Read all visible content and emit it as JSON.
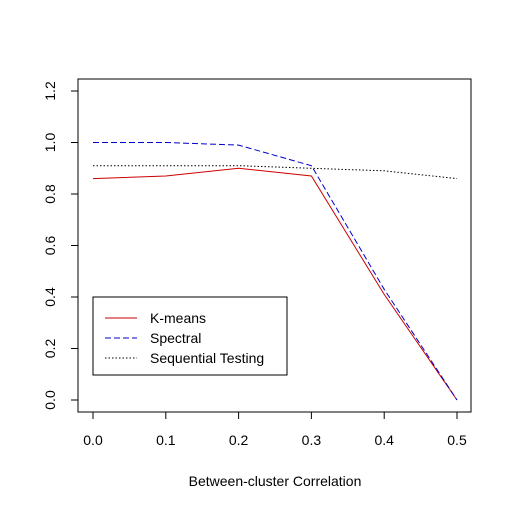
{
  "chart_data": {
    "type": "line",
    "title": "",
    "xlabel": "Between-cluster Correlation",
    "ylabel": "",
    "xlim": [
      -0.05,
      0.52
    ],
    "ylim": [
      -0.05,
      1.25
    ],
    "x_ticks": [
      0.0,
      0.1,
      0.2,
      0.3,
      0.4,
      0.5
    ],
    "x_tick_labels": [
      "0.0",
      "0.1",
      "0.2",
      "0.3",
      "0.4",
      "0.5"
    ],
    "y_ticks": [
      0.0,
      0.2,
      0.4,
      0.6,
      0.8,
      1.0,
      1.2
    ],
    "y_tick_labels": [
      "0.0",
      "0.2",
      "0.4",
      "0.6",
      "0.8",
      "1.0",
      "1.2"
    ],
    "grid": false,
    "legend_position": "bottom-left",
    "x": [
      0.0,
      0.1,
      0.2,
      0.3,
      0.4,
      0.5
    ],
    "series": [
      {
        "name": "K-means",
        "values": [
          0.86,
          0.87,
          0.9,
          0.87,
          0.41,
          0.0
        ],
        "color": "#cc0000",
        "dash": "solid"
      },
      {
        "name": "Spectral",
        "values": [
          1.0,
          1.0,
          0.99,
          0.91,
          0.43,
          0.0
        ],
        "color": "#0000cc",
        "dash": "dashed"
      },
      {
        "name": "Sequential Testing",
        "values": [
          0.91,
          0.91,
          0.91,
          0.9,
          0.89,
          0.86
        ],
        "color": "#000000",
        "dash": "dotted"
      }
    ]
  }
}
